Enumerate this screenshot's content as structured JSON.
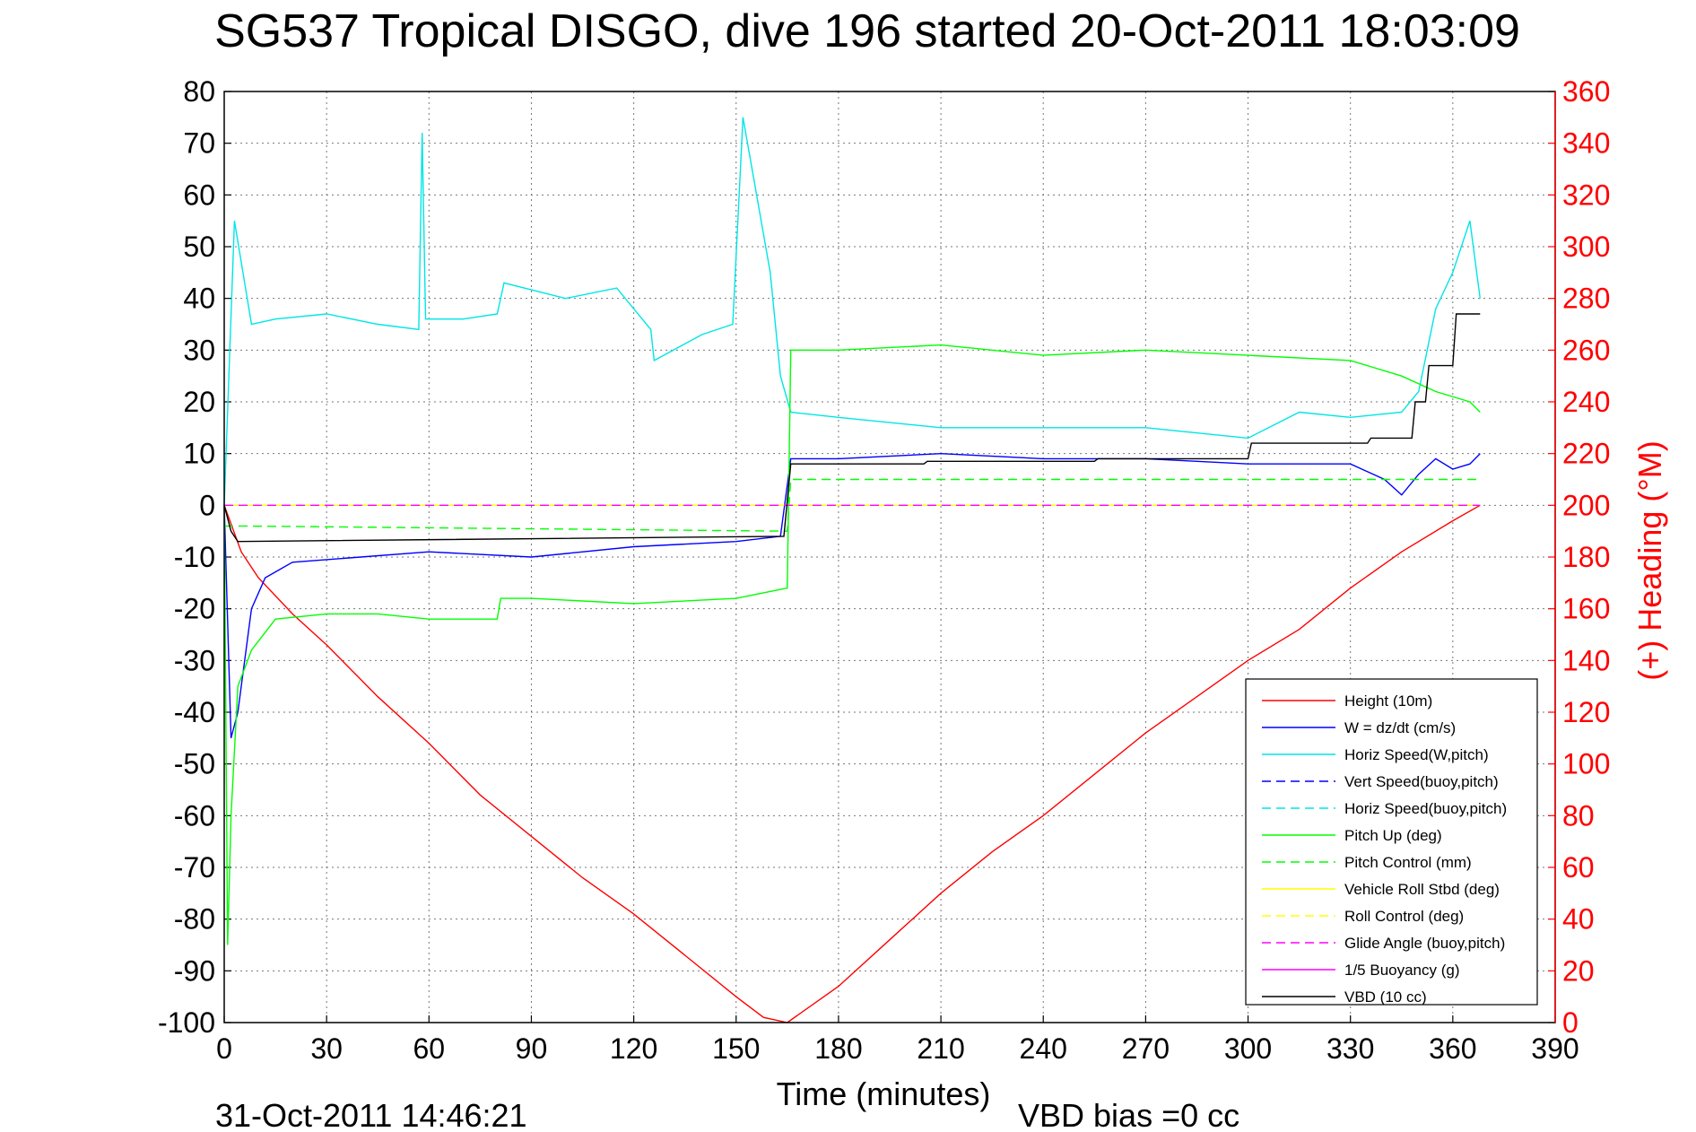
{
  "chart_data": {
    "type": "line",
    "title": "SG537 Tropical DISGO, dive 196 started 20-Oct-2011 18:03:09",
    "xlabel": "Time (minutes)",
    "ylabel_right": "(+) Heading (°M)",
    "xlim": [
      0,
      390
    ],
    "ylim": [
      -100,
      80
    ],
    "ylim_right": [
      0,
      360
    ],
    "x_ticks": [
      0,
      30,
      60,
      90,
      120,
      150,
      180,
      210,
      240,
      270,
      300,
      330,
      360,
      390
    ],
    "y_ticks": [
      80,
      70,
      60,
      50,
      40,
      30,
      20,
      10,
      0,
      -10,
      -20,
      -30,
      -40,
      -50,
      -60,
      -70,
      -80,
      -90,
      -100
    ],
    "y_ticks_right": [
      360,
      340,
      320,
      300,
      280,
      260,
      240,
      220,
      200,
      180,
      160,
      140,
      120,
      100,
      80,
      60,
      40,
      20,
      0
    ],
    "grid": true,
    "legend_position": "bottom-right",
    "footer_left": "31-Oct-2011 14:46:21",
    "footer_right": "VBD bias =0 cc",
    "series": [
      {
        "name": "Height (10m)",
        "color": "#ff0000",
        "style": "solid",
        "x": [
          0,
          5,
          10,
          20,
          30,
          45,
          60,
          75,
          90,
          105,
          120,
          135,
          150,
          158,
          165,
          180,
          195,
          210,
          225,
          240,
          255,
          270,
          285,
          300,
          315,
          330,
          345,
          360,
          368
        ],
        "y": [
          0,
          -9,
          -14,
          -21,
          -27,
          -37,
          -46,
          -56,
          -64,
          -72,
          -79,
          -87,
          -95,
          -99,
          -100,
          -93,
          -84,
          -75,
          -67,
          -60,
          -52,
          -44,
          -37,
          -30,
          -24,
          -16,
          -9,
          -3,
          0
        ]
      },
      {
        "name": "W = dz/dt (cm/s)",
        "color": "#0000ff",
        "style": "solid",
        "x": [
          0,
          2,
          4,
          6,
          8,
          12,
          20,
          40,
          60,
          90,
          120,
          150,
          163,
          166,
          180,
          210,
          240,
          270,
          300,
          330,
          340,
          345,
          350,
          355,
          360,
          365,
          368
        ],
        "y": [
          0,
          -45,
          -40,
          -30,
          -20,
          -14,
          -11,
          -10,
          -9,
          -10,
          -8,
          -7,
          -6,
          9,
          9,
          10,
          9,
          9,
          8,
          8,
          5,
          2,
          6,
          9,
          7,
          8,
          10
        ]
      },
      {
        "name": "Horiz Speed(W,pitch)",
        "color": "#00e5e5",
        "style": "solid",
        "x": [
          0,
          3,
          8,
          15,
          30,
          45,
          57,
          58,
          59,
          70,
          80,
          82,
          100,
          115,
          125,
          126,
          140,
          149,
          152,
          160,
          163,
          166,
          180,
          210,
          240,
          270,
          300,
          315,
          330,
          345,
          350,
          355,
          360,
          365,
          368
        ],
        "y": [
          0,
          55,
          35,
          36,
          37,
          35,
          34,
          72,
          36,
          36,
          37,
          43,
          40,
          42,
          34,
          28,
          33,
          35,
          75,
          45,
          25,
          18,
          17,
          15,
          15,
          15,
          13,
          18,
          17,
          18,
          22,
          38,
          45,
          55,
          40
        ]
      },
      {
        "name": "Vert Speed(buoy,pitch)",
        "color": "#0000ff",
        "style": "dashed",
        "x": [],
        "y": []
      },
      {
        "name": "Horiz Speed(buoy,pitch)",
        "color": "#00e5e5",
        "style": "dashed",
        "x": [],
        "y": []
      },
      {
        "name": "Pitch Up (deg)",
        "color": "#00ff00",
        "style": "solid",
        "x": [
          0,
          1,
          2,
          4,
          8,
          15,
          30,
          45,
          60,
          80,
          81,
          90,
          120,
          150,
          165,
          166,
          180,
          210,
          240,
          270,
          300,
          330,
          345,
          355,
          365,
          368
        ],
        "y": [
          0,
          -85,
          -60,
          -35,
          -28,
          -22,
          -21,
          -21,
          -22,
          -22,
          -18,
          -18,
          -19,
          -18,
          -16,
          30,
          30,
          31,
          29,
          30,
          29,
          28,
          25,
          22,
          20,
          18
        ]
      },
      {
        "name": "Pitch Control (mm)",
        "color": "#00ff00",
        "style": "dashed",
        "x": [
          0,
          5,
          165,
          166,
          368
        ],
        "y": [
          -4,
          -4,
          -5,
          5,
          5
        ]
      },
      {
        "name": "Vehicle Roll Stbd (deg)",
        "color": "#ffff00",
        "style": "solid",
        "x": [
          0,
          368
        ],
        "y": [
          0,
          0
        ]
      },
      {
        "name": "Roll Control (deg)",
        "color": "#ffff00",
        "style": "dashed",
        "x": [
          0,
          368
        ],
        "y": [
          0,
          0
        ]
      },
      {
        "name": "Glide Angle (buoy,pitch)",
        "color": "#ff00ff",
        "style": "dashed",
        "x": [
          0,
          368
        ],
        "y": [
          0,
          0
        ]
      },
      {
        "name": "1/5 Buoyancy (g)",
        "color": "#ff00ff",
        "style": "solid",
        "x": [],
        "y": []
      },
      {
        "name": "VBD (10 cc)",
        "color": "#000000",
        "style": "solid",
        "x": [
          0,
          2,
          4,
          164,
          166,
          205,
          206,
          255,
          256,
          300,
          301,
          335,
          336,
          348,
          349,
          352,
          353,
          360,
          361,
          368
        ],
        "y": [
          0,
          -5,
          -7,
          -6,
          8,
          8,
          8.5,
          8.5,
          9,
          9,
          12,
          12,
          13,
          13,
          20,
          20,
          27,
          27,
          37,
          37
        ]
      }
    ]
  }
}
